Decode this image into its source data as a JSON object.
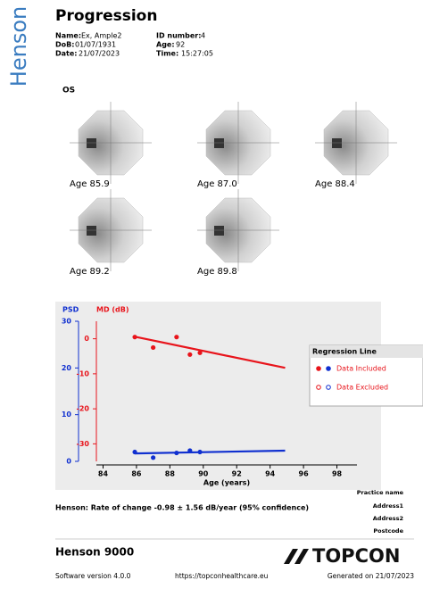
{
  "brand": "Henson",
  "title": "Progression",
  "patient": {
    "name_label": "Name:",
    "name": "Ex,  Ample2",
    "dob_label": "DoB:",
    "dob": "01/07/1931",
    "date_label": "Date:",
    "date": "21/07/2023",
    "id_label": "ID number:",
    "id": "4",
    "age_label": "Age:",
    "age": "92",
    "time_label": "Time:",
    "time": "15:27:05"
  },
  "eye": "OS",
  "fields": [
    "Age 85.9",
    "Age 87.0",
    "Age 88.4",
    "Age 89.2",
    "Age 89.8"
  ],
  "chart_data": {
    "type": "scatter",
    "y_label": "MD (dB)",
    "y2_label": "PSD",
    "x_label": "Age (years)",
    "xlim": [
      83.6,
      99.2
    ],
    "xticks": [
      84,
      86,
      88,
      90,
      92,
      94,
      96,
      98
    ],
    "ylim": [
      -35,
      5
    ],
    "yticks": [
      0,
      -10,
      -20,
      -30
    ],
    "y2lim": [
      0,
      30
    ],
    "y2ticks": [
      0,
      10,
      20,
      30
    ],
    "series": [
      {
        "mode": "points",
        "color": "#e8141b",
        "x": [
          85.9,
          87.0,
          88.4,
          89.2,
          89.8
        ],
        "values": [
          0.5,
          -2.5,
          0.5,
          -4.5,
          -4
        ]
      },
      {
        "mode": "line",
        "color": "#e8141b",
        "x": [
          85.9,
          94.9
        ],
        "values": [
          0.6,
          -8.3
        ]
      },
      {
        "mode": "points",
        "color": "#1030d0",
        "axis": "y2",
        "x": [
          85.9,
          87.0,
          88.4,
          89.2,
          89.8
        ],
        "values": [
          2.0,
          0.8,
          1.8,
          2.3,
          2.0
        ]
      },
      {
        "mode": "line",
        "color": "#1030d0",
        "axis": "y2",
        "x": [
          85.9,
          94.9
        ],
        "values": [
          1.7,
          2.3
        ]
      }
    ],
    "legend": {
      "title": "Regression Line",
      "items": [
        "Data Included",
        "Data Excluded"
      ]
    }
  },
  "summary": "Henson: Rate of change -0.98 ± 1.56 dB/year (95% confidence)",
  "practice": [
    "Practice name",
    "Address1",
    "Address2",
    "Postcode"
  ],
  "footer": {
    "product": "Henson 9000",
    "logo": "TOPCON",
    "version": "Software version 4.0.0",
    "url": "https://topconhealthcare.eu",
    "generated": "Generated on  21/07/2023"
  }
}
